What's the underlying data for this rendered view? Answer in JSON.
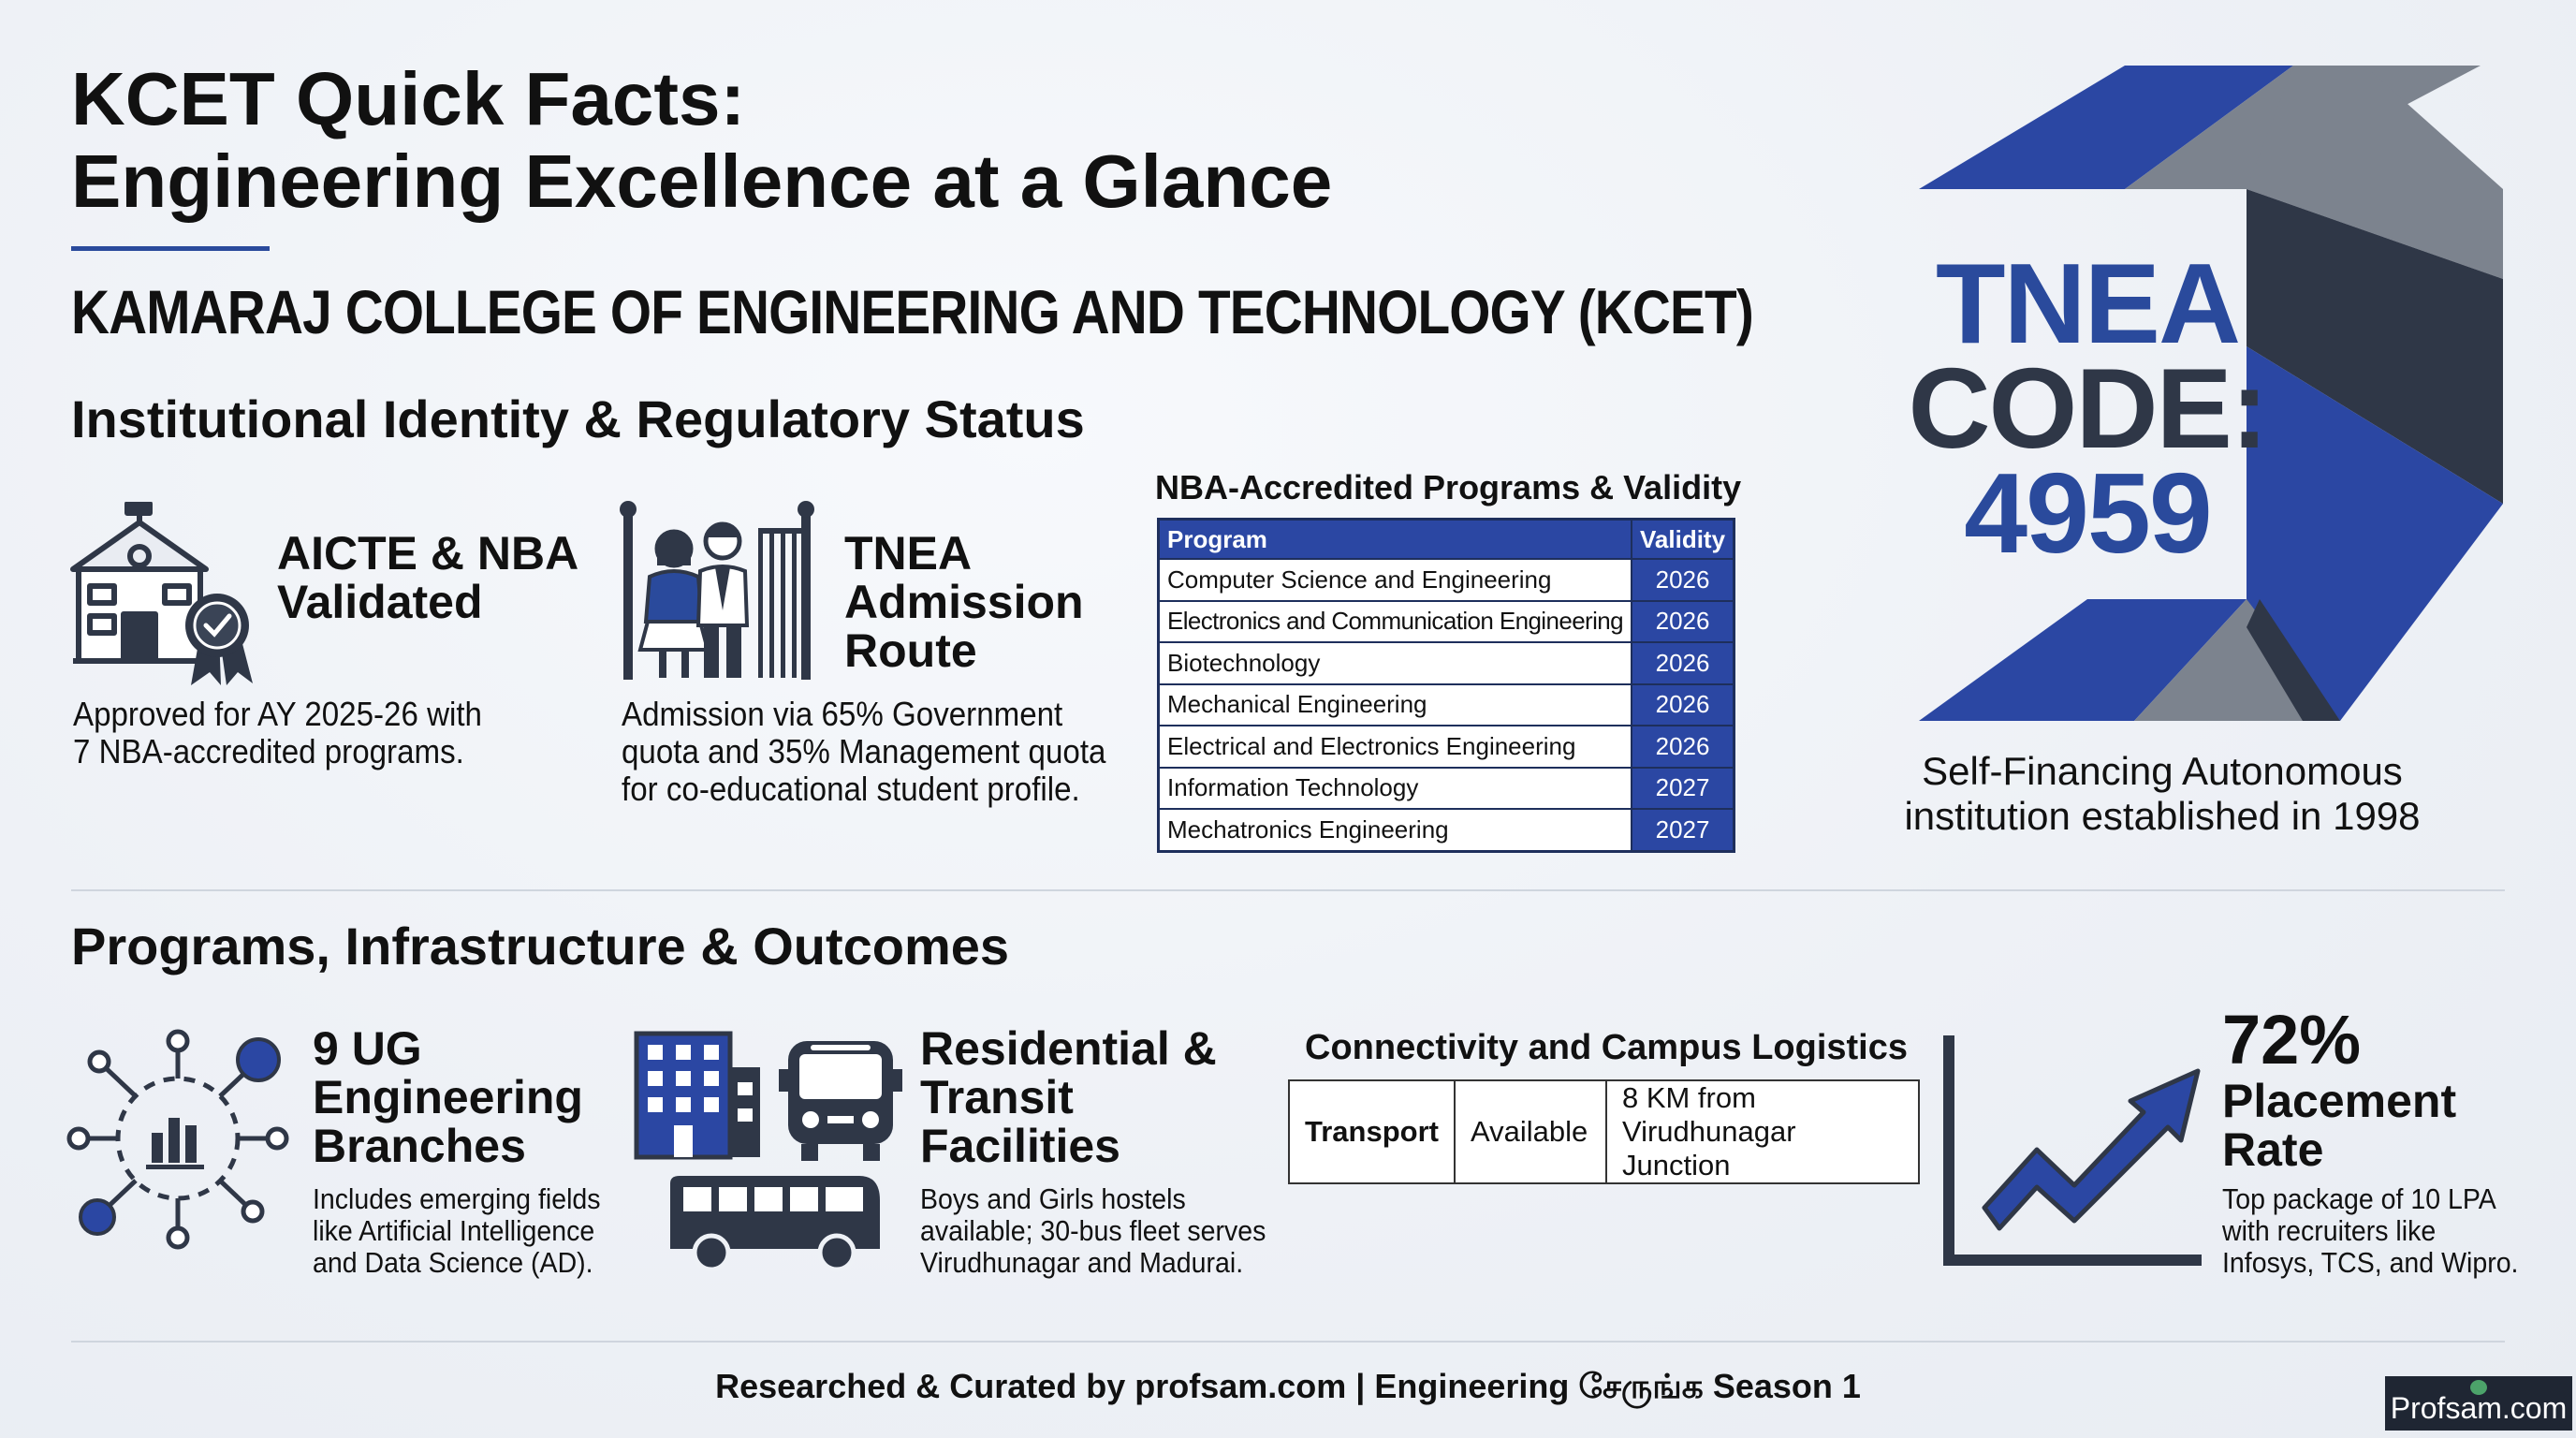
{
  "header": {
    "title_line1": "KCET Quick Facts:",
    "title_line2": "Engineering Excellence at a Glance",
    "college_name": "KAMARAJ COLLEGE OF ENGINEERING AND TECHNOLOGY (KCET)"
  },
  "section1": {
    "heading": "Institutional Identity & Regulatory Status",
    "aicte": {
      "title_line1": "AICTE & NBA",
      "title_line2": "Validated",
      "desc_line1": "Approved for AY 2025-26 with",
      "desc_line2": "7 NBA-accredited programs."
    },
    "admission": {
      "title_line1": "TNEA",
      "title_line2": "Admission",
      "title_line3": "Route",
      "desc_line1": "Admission via 65% Government",
      "desc_line2": "quota and 35% Management quota",
      "desc_line3": "for co-educational student profile."
    },
    "nba_table": {
      "title": "NBA-Accredited Programs & Validity",
      "col_program": "Program",
      "col_validity": "Validity",
      "rows": [
        {
          "program": "Computer Science and Engineering",
          "validity": "2026"
        },
        {
          "program": "Electronics and Communication Engineering",
          "validity": "2026"
        },
        {
          "program": "Biotechnology",
          "validity": "2026"
        },
        {
          "program": "Mechanical Engineering",
          "validity": "2026"
        },
        {
          "program": "Electrical and Electronics Engineering",
          "validity": "2026"
        },
        {
          "program": "Information Technology",
          "validity": "2027"
        },
        {
          "program": "Mechatronics Engineering",
          "validity": "2027"
        }
      ]
    },
    "tnea_code": {
      "line1": "TNEA",
      "line2": "CODE:",
      "line3": "4959",
      "caption_line1": "Self-Financing Autonomous",
      "caption_line2": "institution established in 1998"
    }
  },
  "section2": {
    "heading": "Programs, Infrastructure & Outcomes",
    "branches": {
      "title_line1": "9 UG",
      "title_line2": "Engineering",
      "title_line3": "Branches",
      "desc_line1": "Includes emerging fields",
      "desc_line2": "like Artificial Intelligence",
      "desc_line3": "and Data Science (AD)."
    },
    "residential": {
      "title_line1": "Residential &",
      "title_line2": "Transit",
      "title_line3": "Facilities",
      "desc_line1": "Boys and Girls hostels",
      "desc_line2": "available; 30-bus fleet serves",
      "desc_line3": "Virudhunagar and Madurai."
    },
    "connectivity": {
      "title": "Connectivity and Campus Logistics",
      "label": "Transport",
      "status": "Available",
      "distance_line1": "8 KM from",
      "distance_line2": "Virudhunagar Junction"
    },
    "placement": {
      "title_line1": "72%",
      "title_line2": "Placement",
      "title_line3": "Rate",
      "desc_line1": "Top package of 10 LPA",
      "desc_line2": "with recruiters like",
      "desc_line3": "Infosys, TCS, and Wipro."
    }
  },
  "footer": {
    "credit": "Researched & Curated by profsam.com | Engineering சேருங்க Season 1",
    "badge": "Profsam.com"
  },
  "colors": {
    "accent_blue": "#2b47a3",
    "dark_slate": "#2f3747",
    "logo_gray": "#7c838e",
    "background": "#eef1f6"
  }
}
